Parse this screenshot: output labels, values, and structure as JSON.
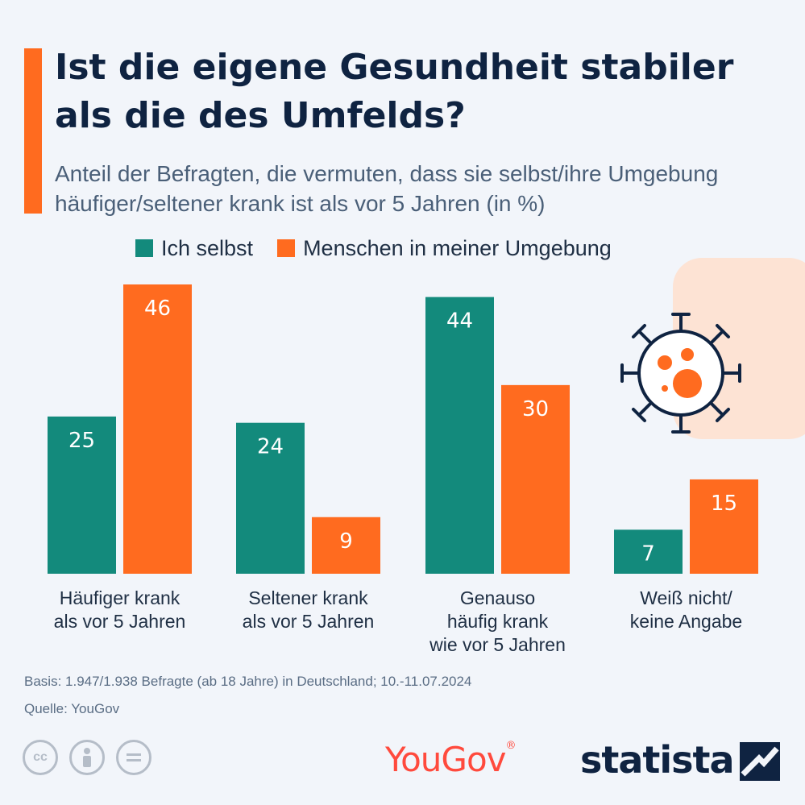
{
  "header": {
    "title": "Ist die eigene Gesundheit stabiler als die des Umfelds?",
    "subtitle": "Anteil der Befragten, die vermuten, dass sie selbst/ihre Umgebung häufiger/seltener krank ist als vor 5 Jahren (in %)"
  },
  "legend": [
    {
      "label": "Ich selbst",
      "color": "#138a7c"
    },
    {
      "label": "Menschen in meiner Umgebung",
      "color": "#ff6b1f"
    }
  ],
  "chart_data": {
    "type": "bar",
    "title": "Ist die eigene Gesundheit stabiler als die des Umfelds?",
    "categories": [
      [
        "Häufiger krank",
        "als vor 5 Jahren"
      ],
      [
        "Seltener krank",
        "als vor 5 Jahren"
      ],
      [
        "Genauso",
        "häufig krank",
        "wie vor 5 Jahren"
      ],
      [
        "Weiß nicht/",
        "keine Angabe"
      ]
    ],
    "series": [
      {
        "name": "Ich selbst",
        "color": "#138a7c",
        "values": [
          25,
          24,
          44,
          7
        ]
      },
      {
        "name": "Menschen in meiner Umgebung",
        "color": "#ff6b1f",
        "values": [
          46,
          9,
          30,
          15
        ]
      }
    ],
    "ylim": [
      0,
      46
    ],
    "grid": false,
    "legend_position": "top",
    "data_labels": true
  },
  "footer": {
    "basis": "Basis: 1.947/1.938 Befragte (ab 18 Jahre) in Deutschland; 10.-11.07.2024",
    "source": "Quelle: YouGov"
  },
  "logos": {
    "yougov": "YouGov",
    "statista": "statista"
  },
  "icons": [
    "cc-icon",
    "by-icon",
    "nd-icon",
    "virus-icon"
  ]
}
